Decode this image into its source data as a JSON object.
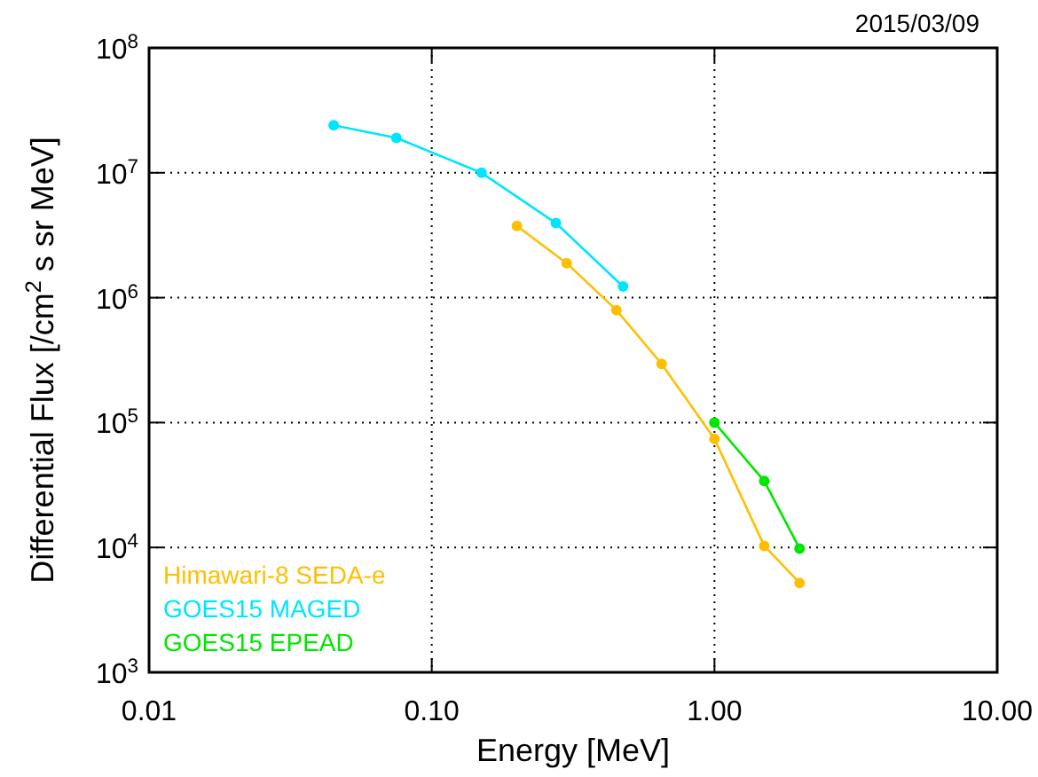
{
  "chart_data": {
    "type": "line",
    "xlabel": "Energy [MeV]",
    "ylabel": "Differential Flux [/cm$^{2}$ s sr MeV]",
    "annotations": [
      "2015/03/09"
    ],
    "log": "xy",
    "grid": true,
    "legend": "bottom left",
    "marker": "circle",
    "xlim": [
      0.01,
      10
    ],
    "xticks": [
      {
        "value": 0.01,
        "label": "0.01"
      },
      {
        "value": 0.1,
        "label": "0.10"
      },
      {
        "value": 1,
        "label": "1.00"
      },
      {
        "value": 10,
        "label": "10.00"
      }
    ],
    "ylim": [
      1000,
      100000000
    ],
    "yticks": [
      {
        "value": 1000,
        "label": "10$^{3}$"
      },
      {
        "value": 10000,
        "label": "10$^{4}$"
      },
      {
        "value": 100000,
        "label": "10$^{5}$"
      },
      {
        "value": 1000000,
        "label": "10$^{6}$"
      },
      {
        "value": 10000000,
        "label": "10$^{7}$"
      },
      {
        "value": 100000000,
        "label": "10$^{8}$"
      }
    ],
    "series": [
      {
        "name": "Himawari-8 SEDA-e",
        "color": "#ffbf00",
        "x": [
          0.2,
          0.3,
          0.45,
          0.65,
          1.0,
          1.5,
          2.0
        ],
        "values": [
          3750000,
          1890000,
          795000,
          295000,
          74000,
          10300,
          5200
        ]
      },
      {
        "name": "GOES15 MAGED",
        "color": "#00e5ff",
        "x": [
          0.045,
          0.075,
          0.15,
          0.275,
          0.475
        ],
        "values": [
          24000000,
          19000000,
          10000000,
          3950000,
          1230000
        ]
      },
      {
        "name": "GOES15 EPEAD",
        "color": "#00e600",
        "x": [
          1.0,
          1.5,
          2.0
        ],
        "values": [
          100000,
          34000,
          9800
        ]
      }
    ]
  }
}
